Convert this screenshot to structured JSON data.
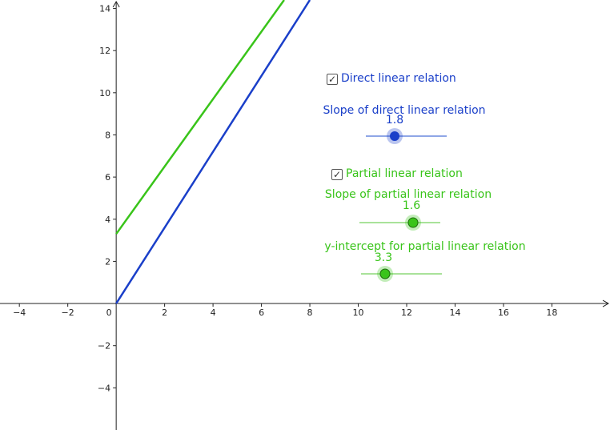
{
  "graph": {
    "x_range": [
      -4.8,
      20.4
    ],
    "y_range": [
      -6.0,
      14.4
    ],
    "x_ticks": [
      -4,
      -2,
      0,
      2,
      4,
      6,
      8,
      10,
      12,
      14,
      16,
      18
    ],
    "y_ticks": [
      -4,
      -2,
      2,
      4,
      6,
      8,
      10,
      12,
      14
    ],
    "origin_label": "0"
  },
  "controls": {
    "direct_checkbox": {
      "label": "Direct linear relation",
      "checked": true,
      "color": "#1a3fc9"
    },
    "direct_slope": {
      "label": "Slope of direct linear relation",
      "value": "1.8",
      "color": "#1a3fc9",
      "fraction": 0.36
    },
    "partial_checkbox": {
      "label": "Partial linear relation",
      "checked": true,
      "color": "#39c41a"
    },
    "partial_slope": {
      "label": "Slope of partial linear relation",
      "value": "1.6",
      "color": "#39c41a",
      "fraction": 0.66
    },
    "partial_intercept": {
      "label": "y-intercept for partial linear relation",
      "value": "3.3",
      "color": "#39c41a",
      "fraction": 0.3
    }
  },
  "lines": [
    {
      "name": "direct",
      "slope": 1.8,
      "intercept": 0,
      "color": "#1a3fc9"
    },
    {
      "name": "partial",
      "slope": 1.6,
      "intercept": 3.3,
      "color": "#39c41a"
    }
  ]
}
